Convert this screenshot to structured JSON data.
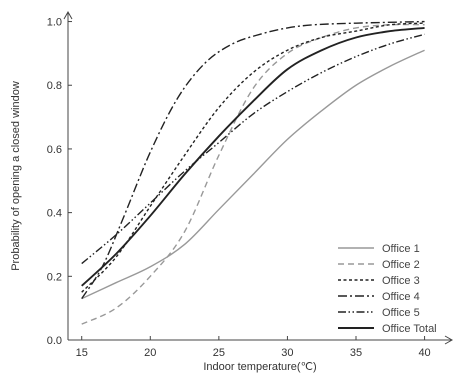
{
  "chart_data": {
    "type": "line",
    "xlabel": "Indoor temperature(℃)",
    "ylabel": "Probability of opening a closed window",
    "xlim": [
      14,
      42
    ],
    "ylim": [
      0,
      1.03
    ],
    "xticks": [
      15,
      20,
      25,
      30,
      35,
      40
    ],
    "xtick_labels": [
      "15",
      "20",
      "25",
      "30",
      "35",
      "40"
    ],
    "yticks": [
      0,
      0.2,
      0.4,
      0.6,
      0.8,
      1.0
    ],
    "ytick_labels": [
      "0.0",
      "0.2",
      "0.4",
      "0.6",
      "0.8",
      "1.0"
    ],
    "grid": false,
    "legend_position": "bottom-right",
    "series": [
      {
        "name": "Office 1",
        "color": "#999999",
        "dash": "solid",
        "x": [
          15,
          17.5,
          20,
          22.5,
          25,
          27.5,
          30,
          32.5,
          35,
          37.5,
          40
        ],
        "values": [
          0.13,
          0.18,
          0.23,
          0.3,
          0.41,
          0.52,
          0.63,
          0.72,
          0.8,
          0.86,
          0.91
        ]
      },
      {
        "name": "Office 2",
        "color": "#999999",
        "dash": "dash",
        "x": [
          15,
          17.5,
          20,
          22.5,
          25,
          27.5,
          30,
          32.5,
          35,
          37.5,
          40
        ],
        "values": [
          0.05,
          0.1,
          0.2,
          0.34,
          0.58,
          0.79,
          0.9,
          0.95,
          0.98,
          0.99,
          0.99
        ]
      },
      {
        "name": "Office 3",
        "color": "#222222",
        "dash": "dash-small",
        "x": [
          15,
          17.5,
          20,
          22.5,
          25,
          27.5,
          30,
          32.5,
          35,
          37.5,
          40
        ],
        "values": [
          0.15,
          0.26,
          0.42,
          0.58,
          0.73,
          0.84,
          0.91,
          0.95,
          0.97,
          0.99,
          0.995
        ]
      },
      {
        "name": "Office 4",
        "color": "#222222",
        "dash": "dash-dot",
        "x": [
          15,
          16.5,
          18,
          20,
          22,
          24,
          26,
          28,
          30,
          32,
          35,
          40
        ],
        "values": [
          0.13,
          0.23,
          0.38,
          0.59,
          0.76,
          0.87,
          0.93,
          0.96,
          0.98,
          0.99,
          0.995,
          1.0
        ]
      },
      {
        "name": "Office 5",
        "color": "#222222",
        "dash": "dash-dot-dot",
        "x": [
          15,
          17.5,
          20,
          22.5,
          25,
          27.5,
          30,
          32.5,
          35,
          37.5,
          40
        ],
        "values": [
          0.24,
          0.33,
          0.43,
          0.53,
          0.62,
          0.71,
          0.78,
          0.84,
          0.89,
          0.93,
          0.96
        ]
      },
      {
        "name": "Office Total",
        "color": "#222222",
        "dash": "solid-bold",
        "x": [
          15,
          17.5,
          20,
          22.5,
          25,
          27.5,
          30,
          32.5,
          35,
          37.5,
          40
        ],
        "values": [
          0.17,
          0.27,
          0.39,
          0.52,
          0.64,
          0.75,
          0.85,
          0.91,
          0.95,
          0.97,
          0.98
        ]
      }
    ]
  }
}
